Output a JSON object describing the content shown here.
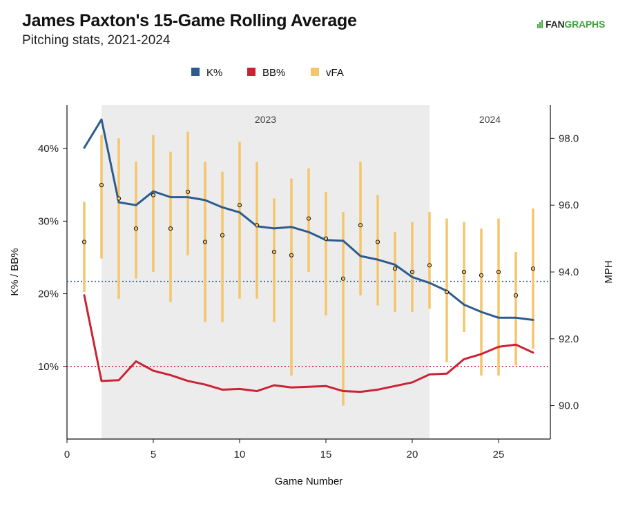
{
  "header": {
    "title": "James Paxton's 15-Game Rolling Average",
    "subtitle": "Pitching stats, 2021-2024",
    "logo_fan": "FAN",
    "logo_graphs": "GRAPHS"
  },
  "colors": {
    "k": "#2d5b8e",
    "bb": "#cc2233",
    "vfa": "#f5c56b",
    "era_shade": "#ececec",
    "logo_green": "#3ea33e"
  },
  "chart_data": {
    "type": "line",
    "xlabel": "Game Number",
    "ylabel_left": "K% / BB%",
    "ylabel_right": "MPH",
    "xlim": [
      0,
      28
    ],
    "ylim_left": [
      0.0,
      0.46
    ],
    "ylim_right": [
      89.0,
      99.0
    ],
    "x_ticks": [
      0,
      5,
      10,
      15,
      20,
      25
    ],
    "y_ticks_left": [
      "10%",
      "20%",
      "30%",
      "40%"
    ],
    "y_tick_values_left": [
      0.1,
      0.2,
      0.3,
      0.4
    ],
    "y_ticks_right": [
      "90.0",
      "92.0",
      "94.0",
      "96.0",
      "98.0"
    ],
    "y_tick_values_right": [
      90.0,
      92.0,
      94.0,
      96.0,
      98.0
    ],
    "legend": [
      "K%",
      "BB%",
      "vFA"
    ],
    "legend_placement": "top-center",
    "eras": [
      {
        "label": "2023",
        "x_start": 2,
        "x_end": 21,
        "shaded": true
      },
      {
        "label": "2024",
        "x_start": 21,
        "x_end": 28,
        "shaded": false
      }
    ],
    "x": [
      1,
      2,
      3,
      4,
      5,
      6,
      7,
      8,
      9,
      10,
      11,
      12,
      13,
      14,
      15,
      16,
      17,
      18,
      19,
      20,
      21,
      22,
      23,
      24,
      25,
      26,
      27
    ],
    "series": [
      {
        "name": "K%",
        "axis": "left",
        "values": [
          0.401,
          0.44,
          0.326,
          0.322,
          0.341,
          0.333,
          0.333,
          0.329,
          0.319,
          0.312,
          0.293,
          0.29,
          0.292,
          0.285,
          0.274,
          0.273,
          0.252,
          0.247,
          0.24,
          0.223,
          0.215,
          0.204,
          0.185,
          0.175,
          0.167,
          0.167,
          0.164
        ]
      },
      {
        "name": "BB%",
        "axis": "left",
        "values": [
          0.198,
          0.08,
          0.081,
          0.107,
          0.094,
          0.088,
          0.08,
          0.075,
          0.068,
          0.069,
          0.066,
          0.074,
          0.071,
          0.072,
          0.073,
          0.066,
          0.065,
          0.068,
          0.073,
          0.078,
          0.089,
          0.09,
          0.11,
          0.117,
          0.127,
          0.13,
          0.119
        ]
      },
      {
        "name": "vFA",
        "axis": "right",
        "values": [
          94.9,
          96.6,
          96.2,
          95.3,
          96.3,
          95.3,
          96.4,
          94.9,
          95.1,
          96.0,
          95.4,
          94.6,
          94.5,
          95.6,
          95.0,
          93.8,
          95.4,
          94.9,
          94.1,
          94.0,
          94.2,
          93.4,
          94.0,
          93.9,
          94.0,
          93.3,
          94.1
        ],
        "low": [
          93.4,
          94.4,
          93.2,
          93.8,
          94.0,
          93.1,
          94.5,
          92.5,
          92.5,
          93.2,
          93.2,
          92.5,
          90.9,
          94.0,
          92.7,
          90.0,
          93.3,
          93.0,
          92.8,
          92.8,
          92.9,
          91.3,
          92.2,
          90.9,
          90.9,
          91.2,
          91.7
        ],
        "high": [
          96.1,
          98.1,
          98.0,
          97.3,
          98.1,
          97.6,
          98.2,
          97.3,
          97.0,
          97.9,
          97.3,
          96.2,
          96.8,
          97.1,
          96.4,
          95.8,
          97.3,
          96.3,
          95.2,
          95.5,
          95.8,
          95.6,
          95.5,
          95.3,
          95.6,
          94.6,
          95.9
        ]
      }
    ],
    "reference_lines": [
      {
        "series": "K%",
        "axis": "left",
        "value": 0.217,
        "style": "dotted"
      },
      {
        "series": "BB%",
        "axis": "left",
        "value": 0.1,
        "style": "dotted"
      }
    ],
    "grid": false
  }
}
